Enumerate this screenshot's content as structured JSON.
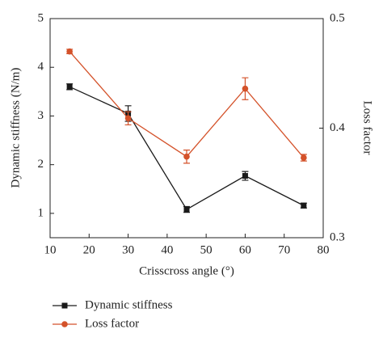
{
  "chart_data": {
    "type": "line",
    "x_label": "Crisscross angle (°)",
    "y_label": "Dynamic stiffness (N/m)",
    "y2_label": "Loss factor",
    "x": [
      15,
      30,
      45,
      60,
      75
    ],
    "xlim": [
      10,
      80
    ],
    "xticks": [
      10,
      20,
      30,
      40,
      50,
      60,
      70,
      80
    ],
    "ylim": [
      0.5,
      5
    ],
    "yticks": [
      1,
      2,
      3,
      4,
      5
    ],
    "y2lim": [
      0.3,
      0.5
    ],
    "y2ticks": [
      0.3,
      0.4,
      0.5
    ],
    "series": [
      {
        "name": "Dynamic stiffness",
        "color": "#1a1a1a",
        "marker": "square",
        "axis": "y",
        "values": [
          3.6,
          3.05,
          1.08,
          1.77,
          1.16
        ],
        "errors": [
          0.06,
          0.16,
          0.06,
          0.09,
          0.05
        ]
      },
      {
        "name": "Loss factor",
        "color": "#d4522a",
        "marker": "circle",
        "axis": "y2",
        "values": [
          0.47,
          0.409,
          0.374,
          0.436,
          0.373
        ],
        "errors": [
          0.002,
          0.006,
          0.006,
          0.01,
          0.003
        ]
      }
    ]
  }
}
